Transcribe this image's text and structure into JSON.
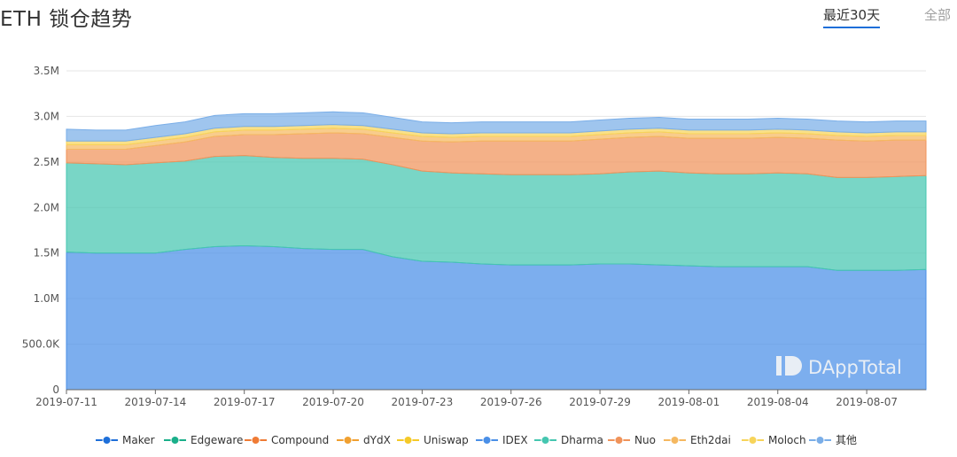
{
  "header": {
    "title": "ETH 锁仓趋势",
    "tabs": [
      {
        "label": "最近30天",
        "active": true
      },
      {
        "label": "全部",
        "active": false
      }
    ]
  },
  "watermark": "DAppTotal",
  "colors": {
    "Maker": "#1e6fd9",
    "Edgeware": "#1aaf8a",
    "Compound": "#ef7b35",
    "dYdX": "#f0a030",
    "Uniswap": "#f5c928",
    "IDEX": "#4a8fe7",
    "Dharma": "#45c6b0",
    "Nuo": "#f0935a",
    "Eth2dai": "#f5b860",
    "Moloch": "#f7d45a",
    "其他": "#7aaee8"
  },
  "chart_data": {
    "type": "area",
    "title": "ETH 锁仓趋势",
    "stacked": true,
    "xlabel": "",
    "ylabel": "",
    "ylim": [
      0,
      3500000
    ],
    "y_ticks": [
      "0",
      "500.0K",
      "1.0M",
      "1.5M",
      "2.0M",
      "2.5M",
      "3.0M",
      "3.5M"
    ],
    "x": [
      "2019-07-11",
      "2019-07-12",
      "2019-07-13",
      "2019-07-14",
      "2019-07-15",
      "2019-07-16",
      "2019-07-17",
      "2019-07-18",
      "2019-07-19",
      "2019-07-20",
      "2019-07-21",
      "2019-07-22",
      "2019-07-23",
      "2019-07-24",
      "2019-07-25",
      "2019-07-26",
      "2019-07-27",
      "2019-07-28",
      "2019-07-29",
      "2019-07-30",
      "2019-07-31",
      "2019-08-01",
      "2019-08-02",
      "2019-08-03",
      "2019-08-04",
      "2019-08-05",
      "2019-08-06",
      "2019-08-07",
      "2019-08-08",
      "2019-08-09"
    ],
    "x_ticks": [
      "2019-07-11",
      "2019-07-14",
      "2019-07-17",
      "2019-07-20",
      "2019-07-23",
      "2019-07-26",
      "2019-07-29",
      "2019-08-01",
      "2019-08-04",
      "2019-08-07"
    ],
    "legend": [
      "Maker",
      "Edgeware",
      "Compound",
      "dYdX",
      "Uniswap",
      "IDEX",
      "Dharma",
      "Nuo",
      "Eth2dai",
      "Moloch",
      "其他"
    ],
    "legend_position": "bottom",
    "series": [
      {
        "name": "IDEX",
        "values": [
          1510000,
          1500000,
          1500000,
          1500000,
          1540000,
          1570000,
          1580000,
          1570000,
          1550000,
          1540000,
          1540000,
          1460000,
          1410000,
          1400000,
          1380000,
          1370000,
          1370000,
          1370000,
          1380000,
          1380000,
          1370000,
          1360000,
          1350000,
          1350000,
          1350000,
          1350000,
          1310000,
          1310000,
          1310000,
          1320000
        ]
      },
      {
        "name": "Dharma",
        "values": [
          980000,
          980000,
          970000,
          990000,
          970000,
          990000,
          990000,
          980000,
          990000,
          1000000,
          990000,
          1010000,
          990000,
          980000,
          990000,
          990000,
          990000,
          990000,
          990000,
          1010000,
          1030000,
          1020000,
          1020000,
          1020000,
          1030000,
          1020000,
          1020000,
          1020000,
          1030000,
          1030000
        ]
      },
      {
        "name": "Nuo",
        "values": [
          150000,
          160000,
          170000,
          190000,
          210000,
          220000,
          230000,
          250000,
          270000,
          280000,
          280000,
          300000,
          330000,
          340000,
          360000,
          370000,
          370000,
          370000,
          380000,
          380000,
          380000,
          380000,
          390000,
          390000,
          390000,
          390000,
          410000,
          400000,
          400000,
          390000
        ]
      },
      {
        "name": "Eth2dai",
        "values": [
          50000,
          50000,
          50000,
          50000,
          50000,
          50000,
          50000,
          50000,
          50000,
          50000,
          50000,
          50000,
          50000,
          50000,
          50000,
          50000,
          50000,
          50000,
          50000,
          50000,
          50000,
          50000,
          50000,
          50000,
          50000,
          50000,
          50000,
          50000,
          50000,
          50000
        ]
      },
      {
        "name": "Moloch",
        "values": [
          40000,
          40000,
          40000,
          40000,
          40000,
          40000,
          40000,
          40000,
          40000,
          40000,
          40000,
          40000,
          40000,
          40000,
          40000,
          40000,
          40000,
          40000,
          40000,
          40000,
          40000,
          40000,
          40000,
          40000,
          40000,
          40000,
          40000,
          40000,
          40000,
          40000
        ]
      },
      {
        "name": "其他",
        "values": [
          130000,
          120000,
          120000,
          130000,
          130000,
          140000,
          140000,
          140000,
          140000,
          140000,
          140000,
          130000,
          120000,
          120000,
          120000,
          120000,
          120000,
          120000,
          120000,
          120000,
          120000,
          120000,
          120000,
          120000,
          120000,
          120000,
          120000,
          120000,
          120000,
          120000
        ]
      }
    ]
  }
}
